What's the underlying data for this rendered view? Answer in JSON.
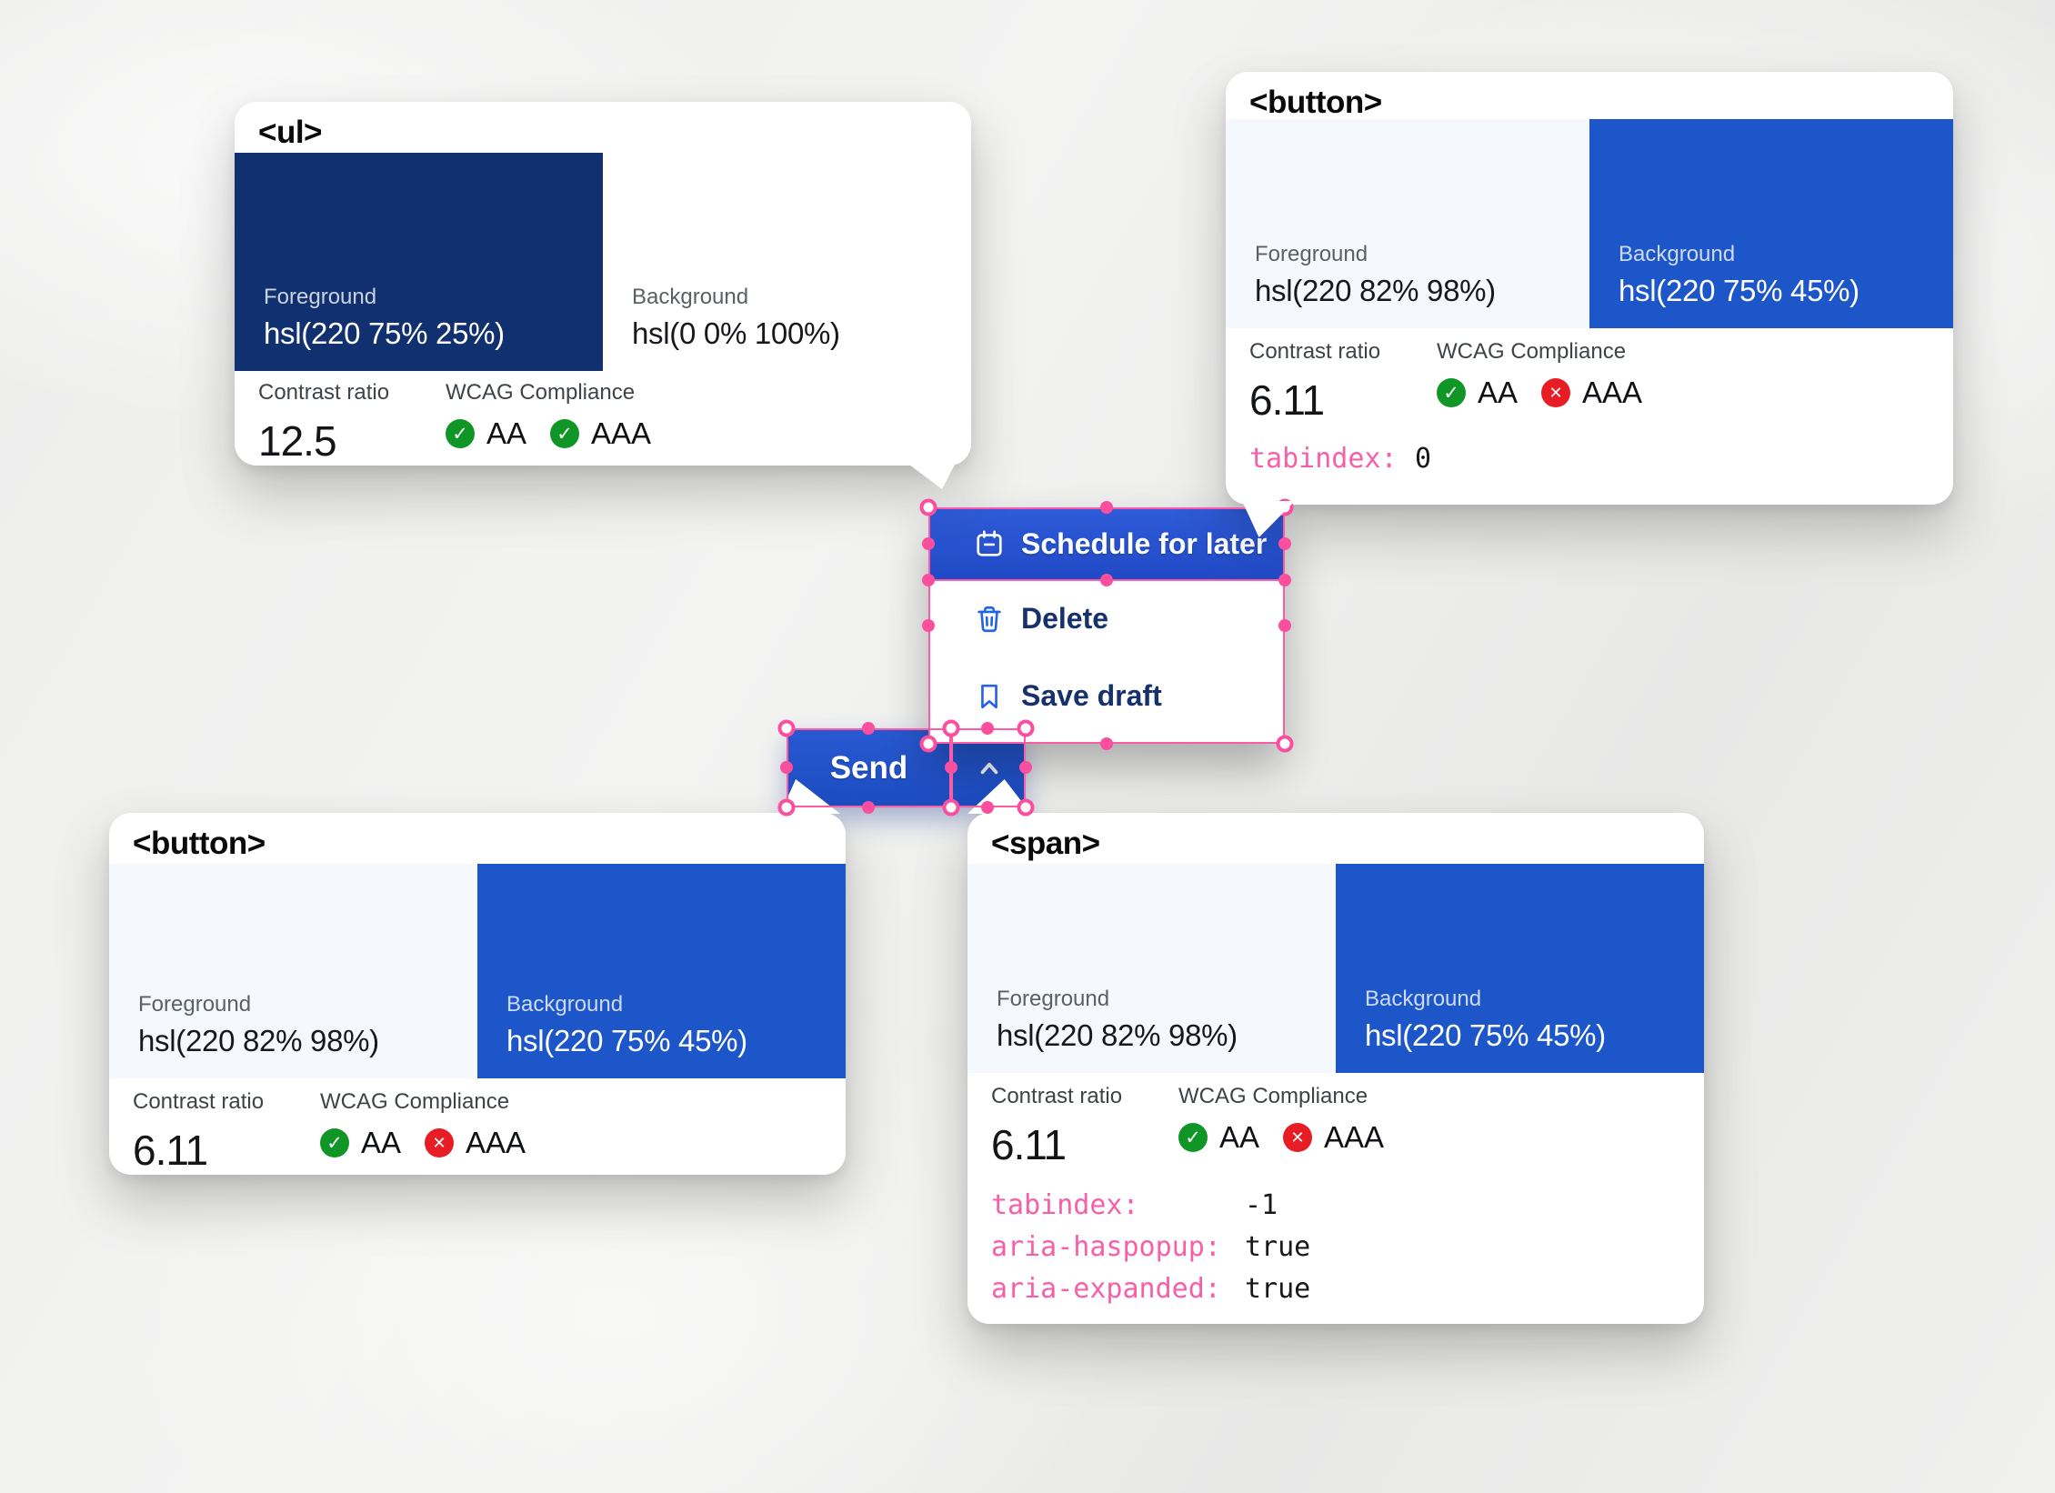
{
  "colors": {
    "accent_blue": "#1d56c9",
    "menu_selected_blue": "#2853d2",
    "navy_swatch": "#103070",
    "pale_foreground_swatch": "#f5f8fe",
    "white_swatch": "#ffffff",
    "overlay_pink": "#fb5ca6",
    "code_attr_pink": "#f75fa8",
    "wcag_pass_green": "#0f9627",
    "wcag_fail_red": "#e81c24"
  },
  "menu": {
    "items": [
      {
        "label": "Schedule for later",
        "icon": "calendar-icon",
        "state": "selected"
      },
      {
        "label": "Delete",
        "icon": "trash-icon",
        "state": "default"
      },
      {
        "label": "Save draft",
        "icon": "bookmark-icon",
        "state": "default"
      }
    ]
  },
  "split_button": {
    "label": "Send",
    "toggle_icon": "chevron-up-icon"
  },
  "cards": {
    "ul": {
      "tag": "<ul>",
      "foreground": {
        "label": "Foreground",
        "value": "hsl(220 75% 25%)",
        "swatch": "#103070"
      },
      "background": {
        "label": "Background",
        "value": "hsl(0 0% 100%)",
        "swatch": "#ffffff"
      },
      "contrast": {
        "label": "Contrast ratio",
        "value": "12.5"
      },
      "wcag": {
        "label": "WCAG Compliance",
        "aa": {
          "label": "AA",
          "result": "pass"
        },
        "aaa": {
          "label": "AAA",
          "result": "pass"
        }
      }
    },
    "button_top": {
      "tag": "<button>",
      "foreground": {
        "label": "Foreground",
        "value": "hsl(220 82% 98%)",
        "swatch": "#f5f8fe"
      },
      "background": {
        "label": "Background",
        "value": "hsl(220 75% 45%)",
        "swatch": "#1d56c9"
      },
      "contrast": {
        "label": "Contrast ratio",
        "value": "6.11"
      },
      "wcag": {
        "label": "WCAG Compliance",
        "aa": {
          "label": "AA",
          "result": "pass"
        },
        "aaa": {
          "label": "AAA",
          "result": "fail"
        }
      },
      "attributes": [
        {
          "name": "tabindex:",
          "value": "0"
        }
      ]
    },
    "button_bottom": {
      "tag": "<button>",
      "foreground": {
        "label": "Foreground",
        "value": "hsl(220 82% 98%)",
        "swatch": "#f5f8fe"
      },
      "background": {
        "label": "Background",
        "value": "hsl(220 75% 45%)",
        "swatch": "#1d56c9"
      },
      "contrast": {
        "label": "Contrast ratio",
        "value": "6.11"
      },
      "wcag": {
        "label": "WCAG Compliance",
        "aa": {
          "label": "AA",
          "result": "pass"
        },
        "aaa": {
          "label": "AAA",
          "result": "fail"
        }
      }
    },
    "span": {
      "tag": "<span>",
      "foreground": {
        "label": "Foreground",
        "value": "hsl(220 82% 98%)",
        "swatch": "#f5f8fe"
      },
      "background": {
        "label": "Background",
        "value": "hsl(220 75% 45%)",
        "swatch": "#1d56c9"
      },
      "contrast": {
        "label": "Contrast ratio",
        "value": "6.11"
      },
      "wcag": {
        "label": "WCAG Compliance",
        "aa": {
          "label": "AA",
          "result": "pass"
        },
        "aaa": {
          "label": "AAA",
          "result": "fail"
        }
      },
      "attributes": [
        {
          "name": "tabindex:",
          "value": "-1"
        },
        {
          "name": "aria-haspopup:",
          "value": "true"
        },
        {
          "name": "aria-expanded:",
          "value": "true"
        }
      ]
    }
  }
}
